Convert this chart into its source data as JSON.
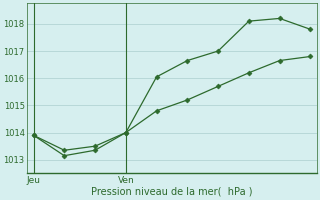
{
  "line1_x": [
    0,
    1,
    2,
    3,
    4,
    5,
    6,
    7,
    8,
    9
  ],
  "line1_y": [
    1013.9,
    1013.15,
    1013.35,
    1014.0,
    1016.05,
    1016.65,
    1017.0,
    1018.1,
    1018.2,
    1017.8
  ],
  "line2_x": [
    0,
    1,
    2,
    3,
    4,
    5,
    6,
    7,
    8,
    9
  ],
  "line2_y": [
    1013.9,
    1013.35,
    1013.5,
    1014.0,
    1014.8,
    1015.2,
    1015.7,
    1016.2,
    1016.65,
    1016.8
  ],
  "line_color": "#2d6a2d",
  "bg_color": "#d6efef",
  "plot_bg": "#d6efef",
  "grid_color": "#b8d8d8",
  "marker": "D",
  "marker_size": 2.5,
  "ylim": [
    1012.5,
    1018.75
  ],
  "yticks": [
    1013,
    1014,
    1015,
    1016,
    1017,
    1018
  ],
  "vline_positions": [
    0,
    3
  ],
  "xtick_labels_pos": [
    0,
    3
  ],
  "xtick_labels": [
    "Jeu",
    "Ven"
  ],
  "xlabel": "Pression niveau de la mer(  hPa )",
  "xlim": [
    -0.2,
    9.2
  ],
  "figsize": [
    3.2,
    2.0
  ],
  "dpi": 100
}
